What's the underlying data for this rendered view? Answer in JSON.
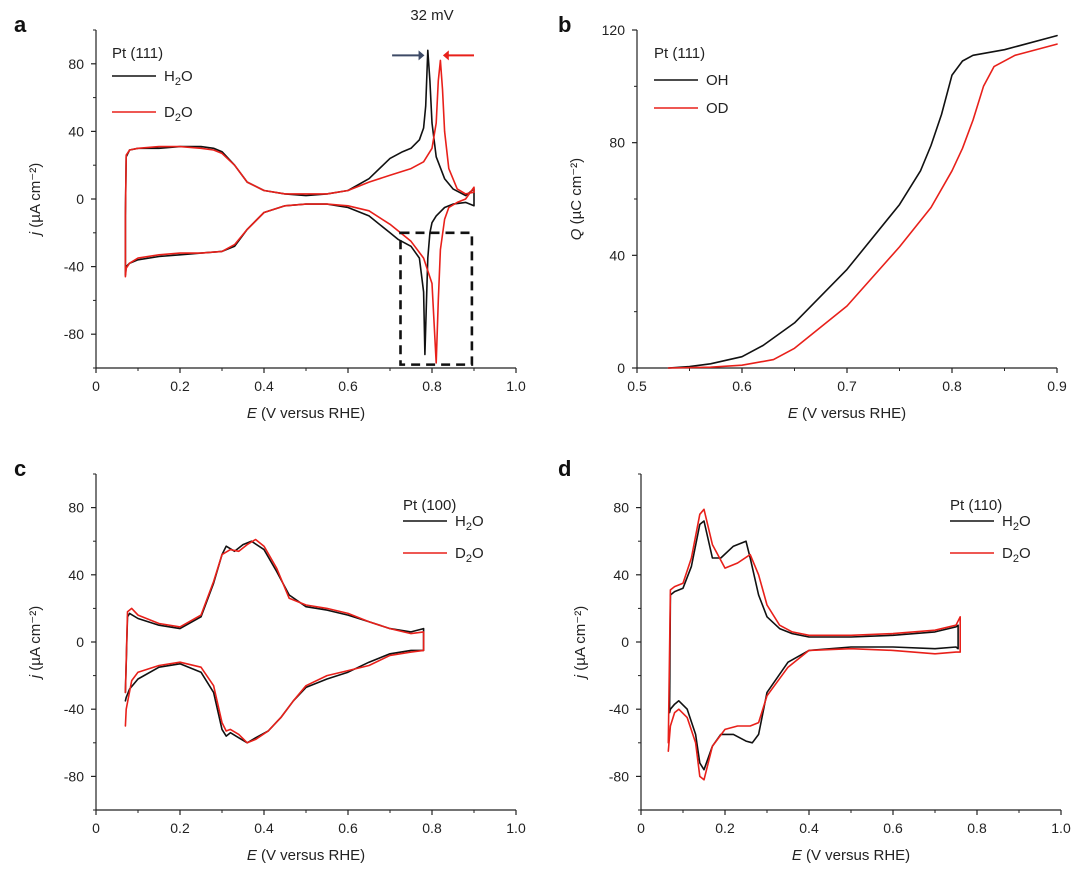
{
  "chart_data": [
    {
      "id": "a",
      "type": "line",
      "panel_label": "a",
      "legend_title": "Pt (111)",
      "xlabel_var": "E",
      "xlabel_rest": " (V versus RHE)",
      "ylabel_var": "j",
      "ylabel_rest": " (µA cm⁻²)",
      "xlim": [
        0,
        1.0
      ],
      "ylim": [
        -100,
        100
      ],
      "xticks": [
        0,
        0.2,
        0.4,
        0.6,
        0.8,
        1.0
      ],
      "xtick_labels": [
        "0",
        "0.2",
        "0.4",
        "0.6",
        "0.8",
        "1.0"
      ],
      "yticks": [
        -80,
        -40,
        0,
        40,
        80
      ],
      "ytick_labels": [
        "-80",
        "-40",
        "0",
        "40",
        "80"
      ],
      "annotation": "32 mV",
      "series": [
        {
          "name": "H2O",
          "base": "H",
          "sub": "2",
          "tail": "O",
          "color": "#111111",
          "x": [
            0.07,
            0.072,
            0.08,
            0.1,
            0.15,
            0.2,
            0.25,
            0.28,
            0.3,
            0.33,
            0.36,
            0.4,
            0.45,
            0.5,
            0.55,
            0.6,
            0.65,
            0.7,
            0.73,
            0.75,
            0.77,
            0.78,
            0.785,
            0.79,
            0.795,
            0.8,
            0.81,
            0.83,
            0.85,
            0.88,
            0.9,
            0.9,
            0.88,
            0.85,
            0.83,
            0.81,
            0.8,
            0.795,
            0.79,
            0.787,
            0.783,
            0.78,
            0.77,
            0.75,
            0.72,
            0.7,
            0.65,
            0.6,
            0.55,
            0.5,
            0.45,
            0.4,
            0.36,
            0.33,
            0.3,
            0.25,
            0.2,
            0.15,
            0.1,
            0.08,
            0.072,
            0.07,
            0.07
          ],
          "y": [
            -10,
            25,
            29,
            30,
            30,
            31,
            31,
            30,
            28,
            20,
            10,
            5,
            3,
            2,
            3,
            5,
            12,
            24,
            28,
            30,
            35,
            42,
            55,
            88,
            70,
            45,
            25,
            12,
            6,
            2,
            6,
            -4,
            -2,
            -3,
            -5,
            -10,
            -14,
            -20,
            -35,
            -60,
            -92,
            -55,
            -35,
            -28,
            -24,
            -20,
            -10,
            -5,
            -3,
            -3,
            -4,
            -8,
            -18,
            -28,
            -31,
            -32,
            -33,
            -34,
            -36,
            -38,
            -40,
            -45,
            -10
          ]
        },
        {
          "name": "D2O",
          "base": "D",
          "sub": "2",
          "tail": "O",
          "color": "#e8201a",
          "x": [
            0.07,
            0.072,
            0.08,
            0.1,
            0.15,
            0.2,
            0.25,
            0.28,
            0.3,
            0.33,
            0.36,
            0.4,
            0.45,
            0.5,
            0.55,
            0.6,
            0.65,
            0.7,
            0.75,
            0.78,
            0.8,
            0.81,
            0.815,
            0.82,
            0.825,
            0.83,
            0.84,
            0.86,
            0.88,
            0.9,
            0.9,
            0.88,
            0.86,
            0.84,
            0.83,
            0.82,
            0.815,
            0.81,
            0.8,
            0.78,
            0.75,
            0.7,
            0.65,
            0.6,
            0.55,
            0.5,
            0.45,
            0.4,
            0.36,
            0.33,
            0.3,
            0.25,
            0.2,
            0.15,
            0.1,
            0.08,
            0.072,
            0.07,
            0.07
          ],
          "y": [
            -10,
            26,
            29,
            30,
            31,
            31,
            30,
            29,
            27,
            20,
            10,
            5,
            3,
            3,
            3,
            5,
            10,
            14,
            18,
            22,
            30,
            45,
            70,
            82,
            65,
            40,
            18,
            6,
            3,
            4,
            7,
            0,
            -2,
            -5,
            -12,
            -30,
            -60,
            -97,
            -50,
            -35,
            -25,
            -15,
            -7,
            -4,
            -3,
            -3,
            -4,
            -8,
            -18,
            -27,
            -31,
            -32,
            -32,
            -33,
            -35,
            -38,
            -41,
            -46,
            -10
          ]
        }
      ]
    },
    {
      "id": "b",
      "type": "line",
      "panel_label": "b",
      "legend_title": "Pt (111)",
      "xlabel_var": "E",
      "xlabel_rest": " (V versus RHE)",
      "ylabel_var": "Q",
      "ylabel_rest": " (µC cm⁻²)",
      "xlim": [
        0.5,
        0.9
      ],
      "ylim": [
        0,
        120
      ],
      "xticks": [
        0.5,
        0.6,
        0.7,
        0.8,
        0.9
      ],
      "xtick_labels": [
        "0.5",
        "0.6",
        "0.7",
        "0.8",
        "0.9"
      ],
      "yticks": [
        0,
        40,
        80,
        120
      ],
      "ytick_labels": [
        "0",
        "40",
        "80",
        "120"
      ],
      "series": [
        {
          "name": "OH",
          "base": "OH",
          "sub": "",
          "tail": "",
          "color": "#111111",
          "x": [
            0.53,
            0.55,
            0.57,
            0.6,
            0.62,
            0.65,
            0.7,
            0.75,
            0.77,
            0.78,
            0.79,
            0.8,
            0.81,
            0.82,
            0.85,
            0.9
          ],
          "y": [
            0,
            0.5,
            1.5,
            4,
            8,
            16,
            35,
            58,
            70,
            79,
            90,
            104,
            109,
            111,
            113,
            118
          ]
        },
        {
          "name": "OD",
          "base": "OD",
          "sub": "",
          "tail": "",
          "color": "#e8201a",
          "x": [
            0.53,
            0.57,
            0.6,
            0.63,
            0.65,
            0.7,
            0.75,
            0.78,
            0.8,
            0.81,
            0.82,
            0.83,
            0.84,
            0.86,
            0.9
          ],
          "y": [
            0,
            0.3,
            1,
            3,
            7,
            22,
            43,
            57,
            70,
            78,
            88,
            100,
            107,
            111,
            115
          ]
        }
      ]
    },
    {
      "id": "c",
      "type": "line",
      "panel_label": "c",
      "legend_title": "Pt (100)",
      "xlabel_var": "E",
      "xlabel_rest": " (V versus RHE)",
      "ylabel_var": "j",
      "ylabel_rest": " (µA cm⁻²)",
      "xlim": [
        0,
        1.0
      ],
      "ylim": [
        -100,
        100
      ],
      "xticks": [
        0,
        0.2,
        0.4,
        0.6,
        0.8,
        1.0
      ],
      "xtick_labels": [
        "0",
        "0.2",
        "0.4",
        "0.6",
        "0.8",
        "1.0"
      ],
      "yticks": [
        -80,
        -40,
        0,
        40,
        80
      ],
      "ytick_labels": [
        "-80",
        "-40",
        "0",
        "40",
        "80"
      ],
      "series": [
        {
          "name": "H2O",
          "base": "H",
          "sub": "2",
          "tail": "O",
          "color": "#111111",
          "x": [
            0.07,
            0.075,
            0.08,
            0.1,
            0.15,
            0.2,
            0.25,
            0.28,
            0.3,
            0.31,
            0.33,
            0.35,
            0.37,
            0.4,
            0.43,
            0.46,
            0.5,
            0.55,
            0.6,
            0.65,
            0.7,
            0.75,
            0.78,
            0.78,
            0.75,
            0.7,
            0.65,
            0.6,
            0.55,
            0.5,
            0.47,
            0.44,
            0.41,
            0.38,
            0.36,
            0.34,
            0.32,
            0.31,
            0.3,
            0.28,
            0.25,
            0.2,
            0.15,
            0.1,
            0.08,
            0.072,
            0.07
          ],
          "y": [
            -30,
            15,
            17,
            14,
            10,
            8,
            15,
            35,
            52,
            57,
            54,
            58,
            60,
            55,
            42,
            28,
            21,
            19,
            16,
            12,
            8,
            6,
            8,
            -5,
            -5,
            -7,
            -12,
            -18,
            -22,
            -27,
            -35,
            -45,
            -53,
            -57,
            -60,
            -57,
            -54,
            -56,
            -52,
            -30,
            -18,
            -13,
            -15,
            -22,
            -28,
            -33,
            -35
          ]
        },
        {
          "name": "D2O",
          "base": "D",
          "sub": "2",
          "tail": "O",
          "color": "#e8201a",
          "x": [
            0.07,
            0.075,
            0.085,
            0.1,
            0.15,
            0.2,
            0.25,
            0.28,
            0.3,
            0.32,
            0.34,
            0.36,
            0.38,
            0.4,
            0.43,
            0.46,
            0.5,
            0.55,
            0.6,
            0.65,
            0.7,
            0.75,
            0.78,
            0.78,
            0.75,
            0.7,
            0.65,
            0.6,
            0.55,
            0.5,
            0.47,
            0.44,
            0.41,
            0.38,
            0.36,
            0.34,
            0.32,
            0.31,
            0.3,
            0.28,
            0.25,
            0.2,
            0.15,
            0.1,
            0.085,
            0.072,
            0.07
          ],
          "y": [
            -30,
            18,
            20,
            16,
            11,
            9,
            16,
            36,
            52,
            55,
            54,
            58,
            61,
            57,
            44,
            26,
            22,
            20,
            17,
            12,
            8,
            5,
            6,
            -5,
            -6,
            -8,
            -14,
            -17,
            -20,
            -26,
            -35,
            -45,
            -53,
            -58,
            -60,
            -55,
            -52,
            -53,
            -48,
            -26,
            -15,
            -12,
            -14,
            -18,
            -23,
            -40,
            -50
          ]
        }
      ]
    },
    {
      "id": "d",
      "type": "line",
      "panel_label": "d",
      "legend_title": "Pt (110)",
      "xlabel_var": "E",
      "xlabel_rest": " (V versus RHE)",
      "ylabel_var": "j",
      "ylabel_rest": " (µA cm⁻²)",
      "xlim": [
        0,
        1.0
      ],
      "ylim": [
        -100,
        100
      ],
      "xticks": [
        0,
        0.2,
        0.4,
        0.6,
        0.8,
        1.0
      ],
      "xtick_labels": [
        "0",
        "0.2",
        "0.4",
        "0.6",
        "0.8",
        "1.0"
      ],
      "yticks": [
        -80,
        -40,
        0,
        40,
        80
      ],
      "ytick_labels": [
        "-80",
        "-40",
        "0",
        "40",
        "80"
      ],
      "series": [
        {
          "name": "H2O",
          "base": "H",
          "sub": "2",
          "tail": "O",
          "color": "#111111",
          "x": [
            0.068,
            0.07,
            0.08,
            0.1,
            0.12,
            0.14,
            0.15,
            0.17,
            0.19,
            0.22,
            0.25,
            0.26,
            0.28,
            0.3,
            0.33,
            0.36,
            0.4,
            0.5,
            0.6,
            0.7,
            0.75,
            0.755,
            0.755,
            0.75,
            0.7,
            0.6,
            0.5,
            0.4,
            0.35,
            0.3,
            0.28,
            0.265,
            0.25,
            0.22,
            0.19,
            0.17,
            0.15,
            0.14,
            0.13,
            0.11,
            0.09,
            0.08,
            0.07,
            0.068
          ],
          "y": [
            -40,
            28,
            30,
            32,
            45,
            70,
            72,
            50,
            50,
            57,
            60,
            50,
            28,
            15,
            8,
            5,
            3,
            3,
            4,
            6,
            9,
            10,
            -4,
            -3,
            -4,
            -3,
            -3,
            -5,
            -12,
            -30,
            -55,
            -60,
            -59,
            -55,
            -55,
            -62,
            -76,
            -72,
            -55,
            -40,
            -35,
            -37,
            -40,
            -42
          ]
        },
        {
          "name": "D2O",
          "base": "D",
          "sub": "2",
          "tail": "O",
          "color": "#e8201a",
          "x": [
            0.065,
            0.07,
            0.08,
            0.1,
            0.12,
            0.14,
            0.15,
            0.17,
            0.2,
            0.23,
            0.26,
            0.28,
            0.3,
            0.33,
            0.36,
            0.4,
            0.5,
            0.6,
            0.7,
            0.75,
            0.76,
            0.76,
            0.75,
            0.7,
            0.6,
            0.5,
            0.4,
            0.35,
            0.3,
            0.28,
            0.26,
            0.23,
            0.2,
            0.17,
            0.15,
            0.14,
            0.13,
            0.11,
            0.09,
            0.08,
            0.07,
            0.065
          ],
          "y": [
            -60,
            31,
            33,
            35,
            50,
            76,
            79,
            58,
            44,
            47,
            52,
            40,
            22,
            10,
            6,
            4,
            4,
            5,
            7,
            10,
            15,
            -6,
            -6,
            -7,
            -5,
            -4,
            -5,
            -15,
            -32,
            -48,
            -50,
            -50,
            -52,
            -62,
            -82,
            -80,
            -60,
            -45,
            -40,
            -42,
            -50,
            -65
          ]
        }
      ]
    }
  ]
}
